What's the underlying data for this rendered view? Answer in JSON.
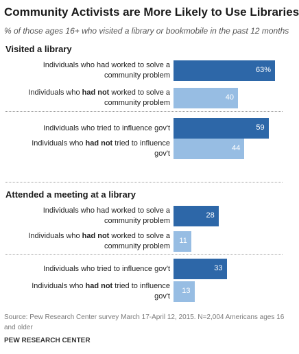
{
  "title": "Community Activists are More Likely to Use Libraries",
  "subtitle": "% of those ages 16+ who visited a library or bookmobile in the past 12 months",
  "source": "Source: Pew Research Center survey March 17-April 12, 2015. N=2,004 Americans ages 16 and older",
  "credit": "PEW RESEARCH CENTER",
  "colors": {
    "dark": "#2d67a8",
    "light": "#97bde3"
  },
  "chart_data": {
    "type": "bar",
    "orientation": "horizontal",
    "title": "Community Activists are More Likely to Use Libraries",
    "subtitle": "% of those ages 16+ who visited a library or bookmobile in the past 12 months",
    "xlim": [
      0,
      100
    ],
    "groups": [
      {
        "name": "Visited a library",
        "bars": [
          {
            "pre": "Individuals who had worked to solve a community problem",
            "bold": "",
            "post": "",
            "value": 63,
            "label": "63%",
            "shade": "dark"
          },
          {
            "pre": "Individuals who ",
            "bold": "had not",
            "post": " worked to solve a community problem",
            "value": 40,
            "label": "40",
            "shade": "light"
          },
          {
            "pre": "Individuals who tried to influence gov't",
            "bold": "",
            "post": "",
            "value": 59,
            "label": "59",
            "shade": "dark"
          },
          {
            "pre": "Individuals who ",
            "bold": "had not",
            "post": " tried to influence gov't",
            "value": 44,
            "label": "44",
            "shade": "light"
          }
        ]
      },
      {
        "name": "Attended a meeting at a library",
        "bars": [
          {
            "pre": "Individuals who had worked to solve a community problem",
            "bold": "",
            "post": "",
            "value": 28,
            "label": "28",
            "shade": "dark"
          },
          {
            "pre": "Individuals who ",
            "bold": "had not",
            "post": " worked to solve a community problem",
            "value": 11,
            "label": "11",
            "shade": "light"
          },
          {
            "pre": "Individuals who tried to influence gov't",
            "bold": "",
            "post": "",
            "value": 33,
            "label": "33",
            "shade": "dark"
          },
          {
            "pre": "Individuals who ",
            "bold": "had not",
            "post": " tried to influence gov't",
            "value": 13,
            "label": "13",
            "shade": "light"
          }
        ]
      }
    ]
  }
}
